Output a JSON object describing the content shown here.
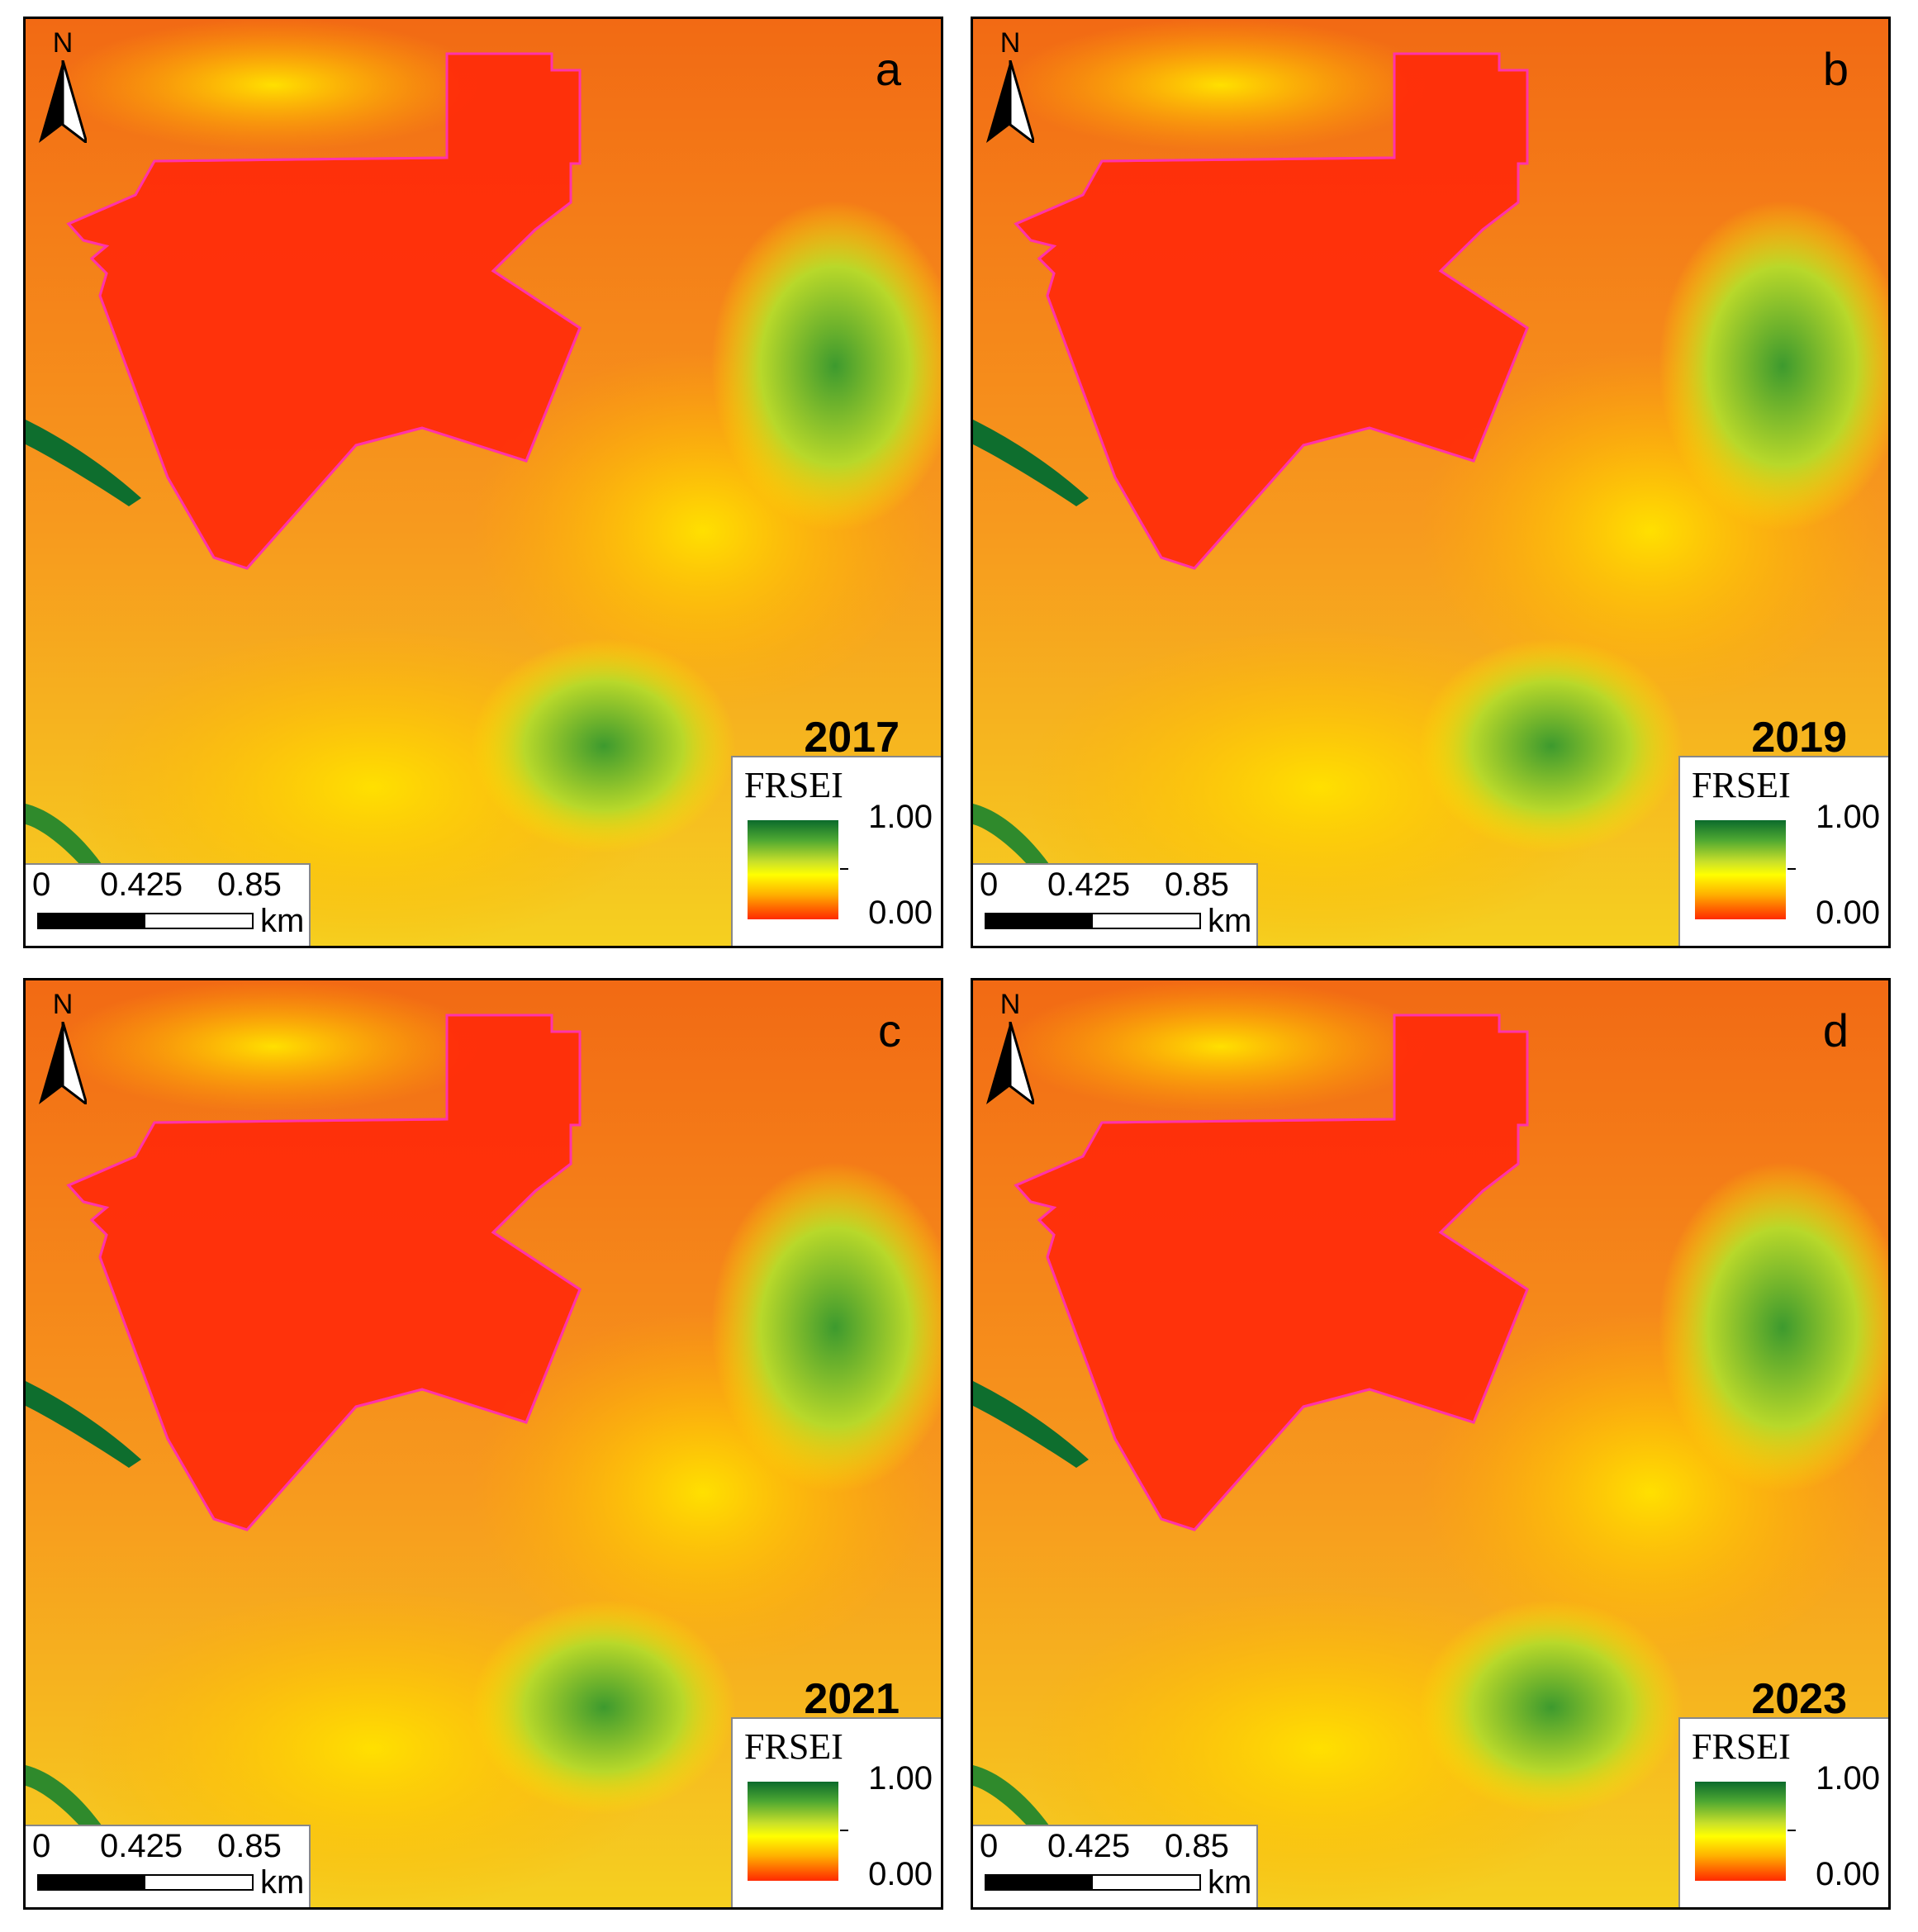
{
  "colors": {
    "high": "#0b6b2c",
    "mid": "#ffff00",
    "low": "#ff2a00",
    "boundary": "#ff33aa"
  },
  "panels": [
    {
      "letter": "a",
      "year": "2017",
      "north": "N",
      "legend_title": "FRSEI",
      "legend_max": "1.00",
      "legend_min": "0.00",
      "scale_labels": [
        "0",
        "0.425",
        "0.85"
      ],
      "scale_unit": "km"
    },
    {
      "letter": "b",
      "year": "2019",
      "north": "N",
      "legend_title": "FRSEI",
      "legend_max": "1.00",
      "legend_min": "0.00",
      "scale_labels": [
        "0",
        "0.425",
        "0.85"
      ],
      "scale_unit": "km"
    },
    {
      "letter": "c",
      "year": "2021",
      "north": "N",
      "legend_title": "FRSEI",
      "legend_max": "1.00",
      "legend_min": "0.00",
      "scale_labels": [
        "0",
        "0.425",
        "0.85"
      ],
      "scale_unit": "km"
    },
    {
      "letter": "d",
      "year": "2023",
      "north": "N",
      "legend_title": "FRSEI",
      "legend_max": "1.00",
      "legend_min": "0.00",
      "scale_labels": [
        "0",
        "0.425",
        "0.85"
      ],
      "scale_unit": "km"
    }
  ]
}
